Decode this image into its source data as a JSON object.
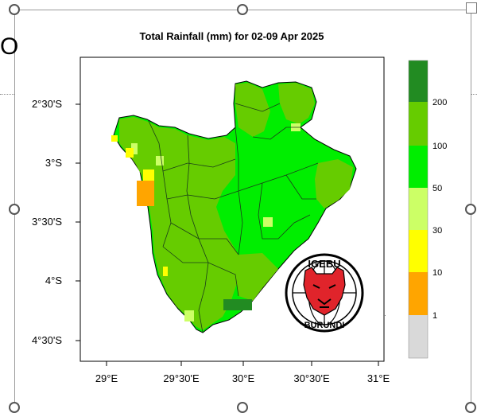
{
  "chart_data": {
    "type": "heatmap",
    "title": "Total Rainfall (mm) for 02-09 Apr 2025",
    "x_ticks": [
      "29°E",
      "29°30'E",
      "30°E",
      "30°30'E",
      "31°E"
    ],
    "y_ticks": [
      "2°30'S",
      "3°S",
      "3°30'S",
      "4°S",
      "4°30'S"
    ],
    "legend": {
      "boundaries": [
        "1",
        "10",
        "30",
        "50",
        "100",
        "200"
      ],
      "classes": [
        {
          "range": "<1",
          "color": "#d9d9d9"
        },
        {
          "range": "1-10",
          "color": "#ffa500"
        },
        {
          "range": "10-30",
          "color": "#ffff00"
        },
        {
          "range": "30-50",
          "color": "#ccff66"
        },
        {
          "range": "50-100",
          "color": "#00ee00"
        },
        {
          "range": "100-200",
          "color": "#66cc00"
        },
        {
          "range": ">200",
          "color": "#228b22"
        }
      ]
    },
    "region": "Burundi",
    "dominant_classes": [
      "50-100",
      "100-200"
    ]
  },
  "logo": {
    "top_text": "IGEBU",
    "bottom_text": "BURUNDI"
  },
  "side_text": "O"
}
